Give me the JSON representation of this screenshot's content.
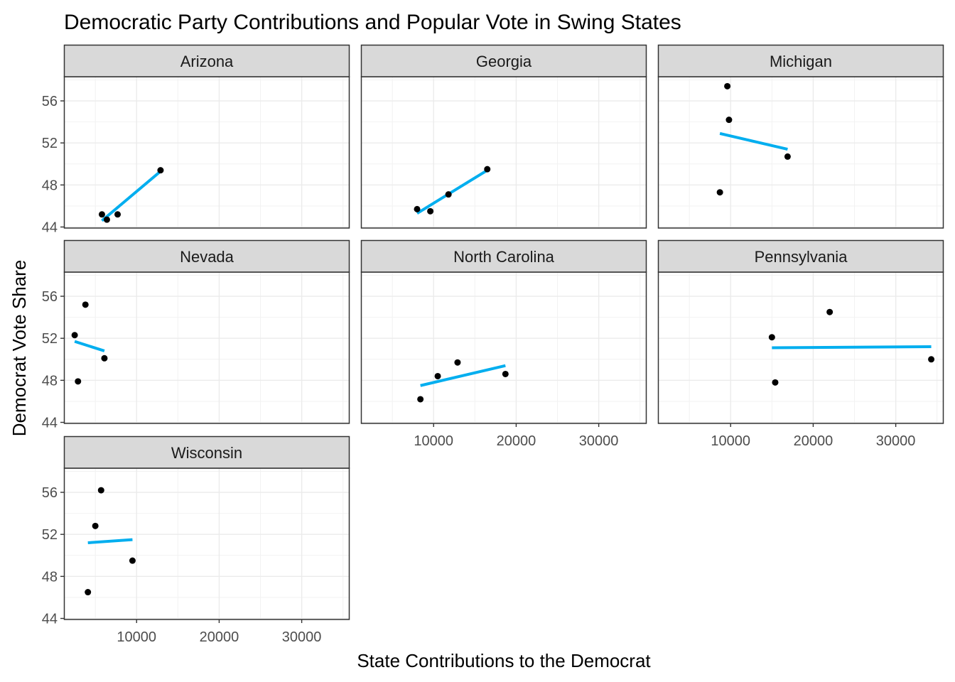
{
  "chart_data": {
    "type": "scatter",
    "title": "Democratic Party Contributions and Popular Vote in Swing States",
    "xlabel": "State Contributions to the Democrat",
    "ylabel": "Democrat Vote Share",
    "xlim": [
      1200,
      35800
    ],
    "ylim": [
      43.9,
      58.3
    ],
    "x_ticks": [
      10000,
      20000,
      30000
    ],
    "y_ticks": [
      44,
      48,
      52,
      56
    ],
    "x_tick_labels": [
      "10000",
      "20000",
      "30000"
    ],
    "y_tick_labels": [
      "44",
      "48",
      "52",
      "56"
    ],
    "grid": true,
    "facet_columns": 3,
    "point_color": "#000000",
    "fit_line_color": "#00AEEF",
    "strip_fill": "#D9D9D9",
    "panels": [
      {
        "name": "Arizona",
        "points": [
          [
            5800,
            45.2
          ],
          [
            6400,
            44.7
          ],
          [
            7700,
            45.2
          ],
          [
            12900,
            49.4
          ]
        ],
        "fit": [
          [
            5800,
            44.6
          ],
          [
            12900,
            49.3
          ]
        ]
      },
      {
        "name": "Georgia",
        "points": [
          [
            8000,
            45.7
          ],
          [
            9600,
            45.5
          ],
          [
            11800,
            47.1
          ],
          [
            16500,
            49.5
          ]
        ],
        "fit": [
          [
            8000,
            45.3
          ],
          [
            16500,
            49.4
          ]
        ]
      },
      {
        "name": "Michigan",
        "points": [
          [
            8700,
            47.3
          ],
          [
            9600,
            57.4
          ],
          [
            9800,
            54.2
          ],
          [
            16900,
            50.7
          ]
        ],
        "fit": [
          [
            8700,
            52.9
          ],
          [
            16900,
            51.4
          ]
        ]
      },
      {
        "name": "Nevada",
        "points": [
          [
            2500,
            52.3
          ],
          [
            2900,
            47.9
          ],
          [
            3800,
            55.2
          ],
          [
            6100,
            50.1
          ]
        ],
        "fit": [
          [
            2500,
            51.7
          ],
          [
            6100,
            50.8
          ]
        ]
      },
      {
        "name": "North Carolina",
        "points": [
          [
            8400,
            46.2
          ],
          [
            10500,
            48.4
          ],
          [
            12900,
            49.7
          ],
          [
            18700,
            48.6
          ]
        ],
        "fit": [
          [
            8400,
            47.5
          ],
          [
            18700,
            49.4
          ]
        ]
      },
      {
        "name": "Pennsylvania",
        "points": [
          [
            15000,
            52.1
          ],
          [
            15400,
            47.8
          ],
          [
            22000,
            54.5
          ],
          [
            34300,
            50.0
          ]
        ],
        "fit": [
          [
            15000,
            51.1
          ],
          [
            34300,
            51.2
          ]
        ]
      },
      {
        "name": "Wisconsin",
        "points": [
          [
            4100,
            46.5
          ],
          [
            5000,
            52.8
          ],
          [
            5700,
            56.2
          ],
          [
            9500,
            49.5
          ]
        ],
        "fit": [
          [
            4100,
            51.2
          ],
          [
            9500,
            51.5
          ]
        ]
      }
    ]
  }
}
